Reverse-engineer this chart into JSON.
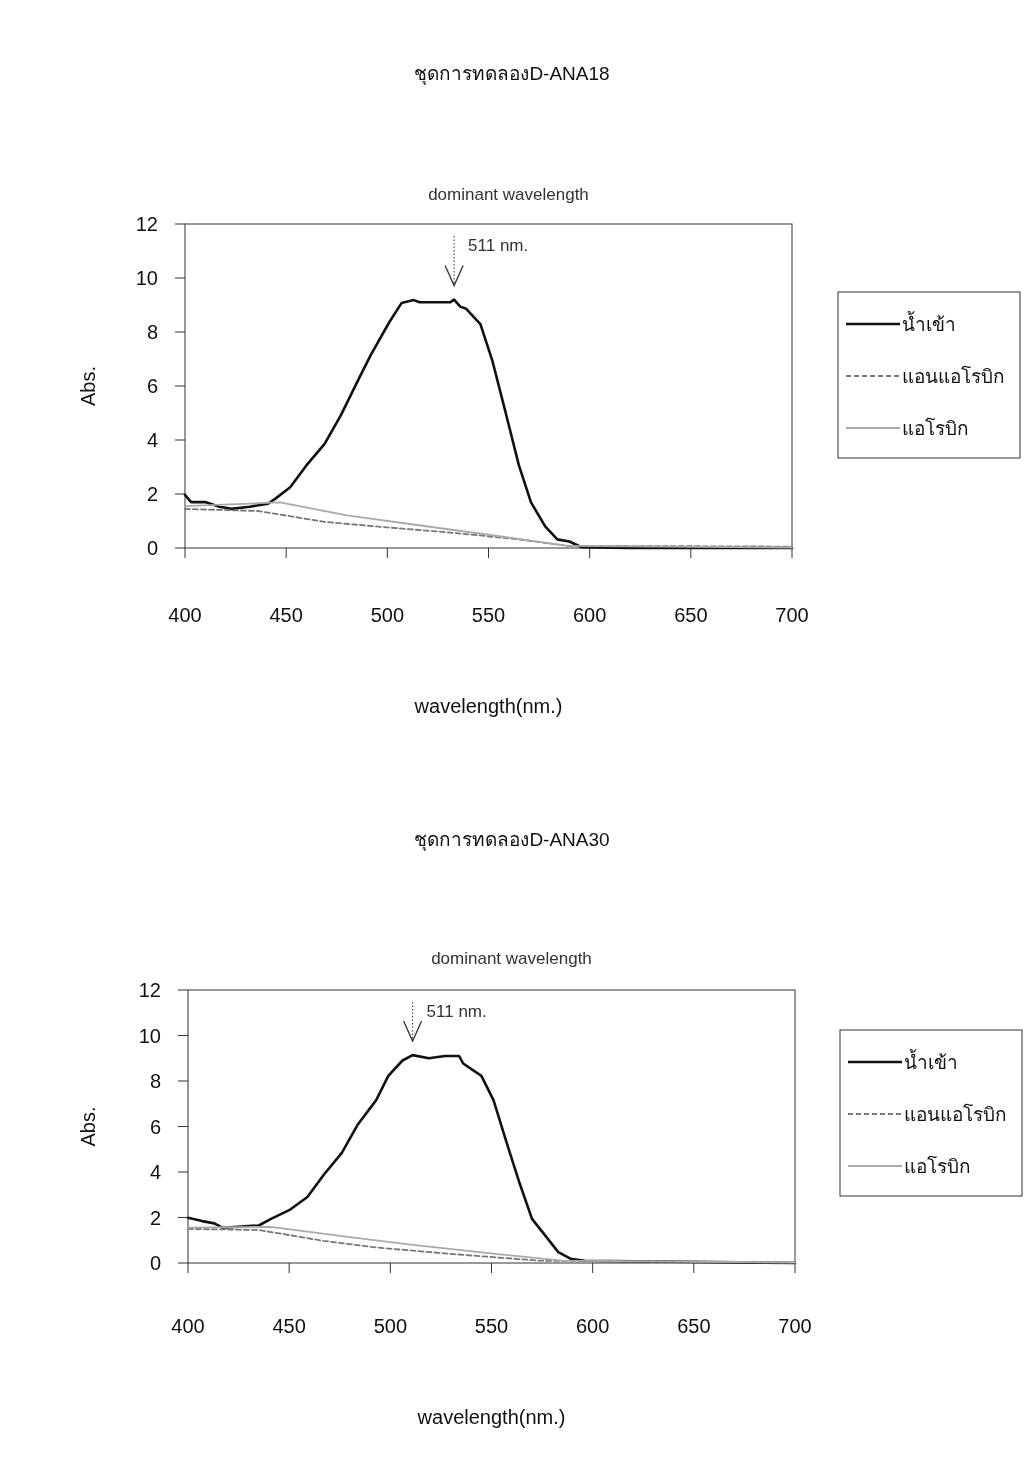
{
  "chart_data": [
    {
      "type": "line",
      "title": "ชุดการทดลองD-ANA18",
      "xlabel": "wavelength(nm.)",
      "ylabel": "Abs.",
      "xlim": [
        400,
        700
      ],
      "xticks": [
        400,
        450,
        500,
        550,
        600,
        650,
        700
      ],
      "ylim": [
        0,
        12
      ],
      "yticks": [
        0,
        2,
        4,
        6,
        8,
        10,
        12
      ],
      "legend": "right",
      "grid": false,
      "annotations": [
        "dominant wavelength",
        "511 nm."
      ],
      "series": [
        {
          "name": "น้ำเข้า",
          "color": "#111111",
          "line_style": "solid",
          "x": [
            400,
            403,
            410,
            417,
            423,
            432,
            441,
            445,
            452,
            460,
            469,
            477,
            486,
            492,
            501,
            507,
            513,
            516,
            531,
            533,
            536,
            539,
            546,
            552,
            558,
            565,
            571,
            578,
            584,
            590,
            596,
            619,
            700
          ],
          "values": [
            1.97,
            1.7,
            1.7,
            1.53,
            1.45,
            1.53,
            1.64,
            1.85,
            2.25,
            3.06,
            3.86,
            4.91,
            6.28,
            7.17,
            8.37,
            9.07,
            9.18,
            9.1,
            9.1,
            9.2,
            8.94,
            8.86,
            8.29,
            6.92,
            5.15,
            3.06,
            1.69,
            0.8,
            0.32,
            0.24,
            0.03,
            0,
            0
          ]
        },
        {
          "name": "แอนแอโรบิก",
          "color": "#777777",
          "line_style": "dashed",
          "x": [
            400,
            436,
            469,
            494,
            533,
            565,
            589,
            700
          ],
          "values": [
            1.45,
            1.37,
            0.97,
            0.8,
            0.56,
            0.32,
            0.08,
            0.05
          ]
        },
        {
          "name": "แอโรบิก",
          "color": "#aaaaaa",
          "line_style": "solid",
          "x": [
            400,
            447,
            480,
            511,
            551,
            589,
            700
          ],
          "values": [
            1.55,
            1.69,
            1.21,
            0.89,
            0.48,
            0.08,
            0.02
          ]
        }
      ]
    },
    {
      "type": "line",
      "title": "ชุดการทดลองD-ANA30",
      "xlabel": "wavelength(nm.)",
      "ylabel": "Abs.",
      "xlim": [
        400,
        700
      ],
      "xticks": [
        400,
        450,
        500,
        550,
        600,
        650,
        700
      ],
      "ylim": [
        0,
        12
      ],
      "yticks": [
        0,
        2,
        4,
        6,
        8,
        10,
        12
      ],
      "legend": "right",
      "grid": false,
      "annotations": [
        "dominant  wavelength",
        "511 nm."
      ],
      "series": [
        {
          "name": "น้ำเข้า",
          "color": "#111111",
          "line_style": "solid",
          "x": [
            400,
            407,
            413,
            417,
            435,
            441,
            450,
            459,
            467,
            476,
            484,
            493,
            499,
            506,
            511,
            519,
            527,
            534,
            536,
            545,
            551,
            557,
            564,
            570,
            577,
            583,
            589,
            596,
            700
          ],
          "values": [
            1.99,
            1.84,
            1.74,
            1.55,
            1.65,
            1.94,
            2.32,
            2.9,
            3.87,
            4.84,
            6.1,
            7.16,
            8.23,
            8.9,
            9.14,
            9.0,
            9.1,
            9.1,
            8.77,
            8.23,
            7.16,
            5.42,
            3.48,
            1.94,
            1.16,
            0.48,
            0.19,
            0.1,
            0
          ]
        },
        {
          "name": "แอนแอโรบิก",
          "color": "#777777",
          "line_style": "dashed",
          "x": [
            400,
            435,
            467,
            493,
            531,
            574,
            700
          ],
          "values": [
            1.5,
            1.45,
            0.97,
            0.68,
            0.39,
            0.1,
            0.02
          ]
        },
        {
          "name": "แอโรบิก",
          "color": "#aaaaaa",
          "line_style": "solid",
          "x": [
            400,
            441,
            478,
            510,
            553,
            585,
            700
          ],
          "values": [
            1.55,
            1.59,
            1.16,
            0.81,
            0.39,
            0.1,
            0.02
          ]
        }
      ]
    }
  ]
}
